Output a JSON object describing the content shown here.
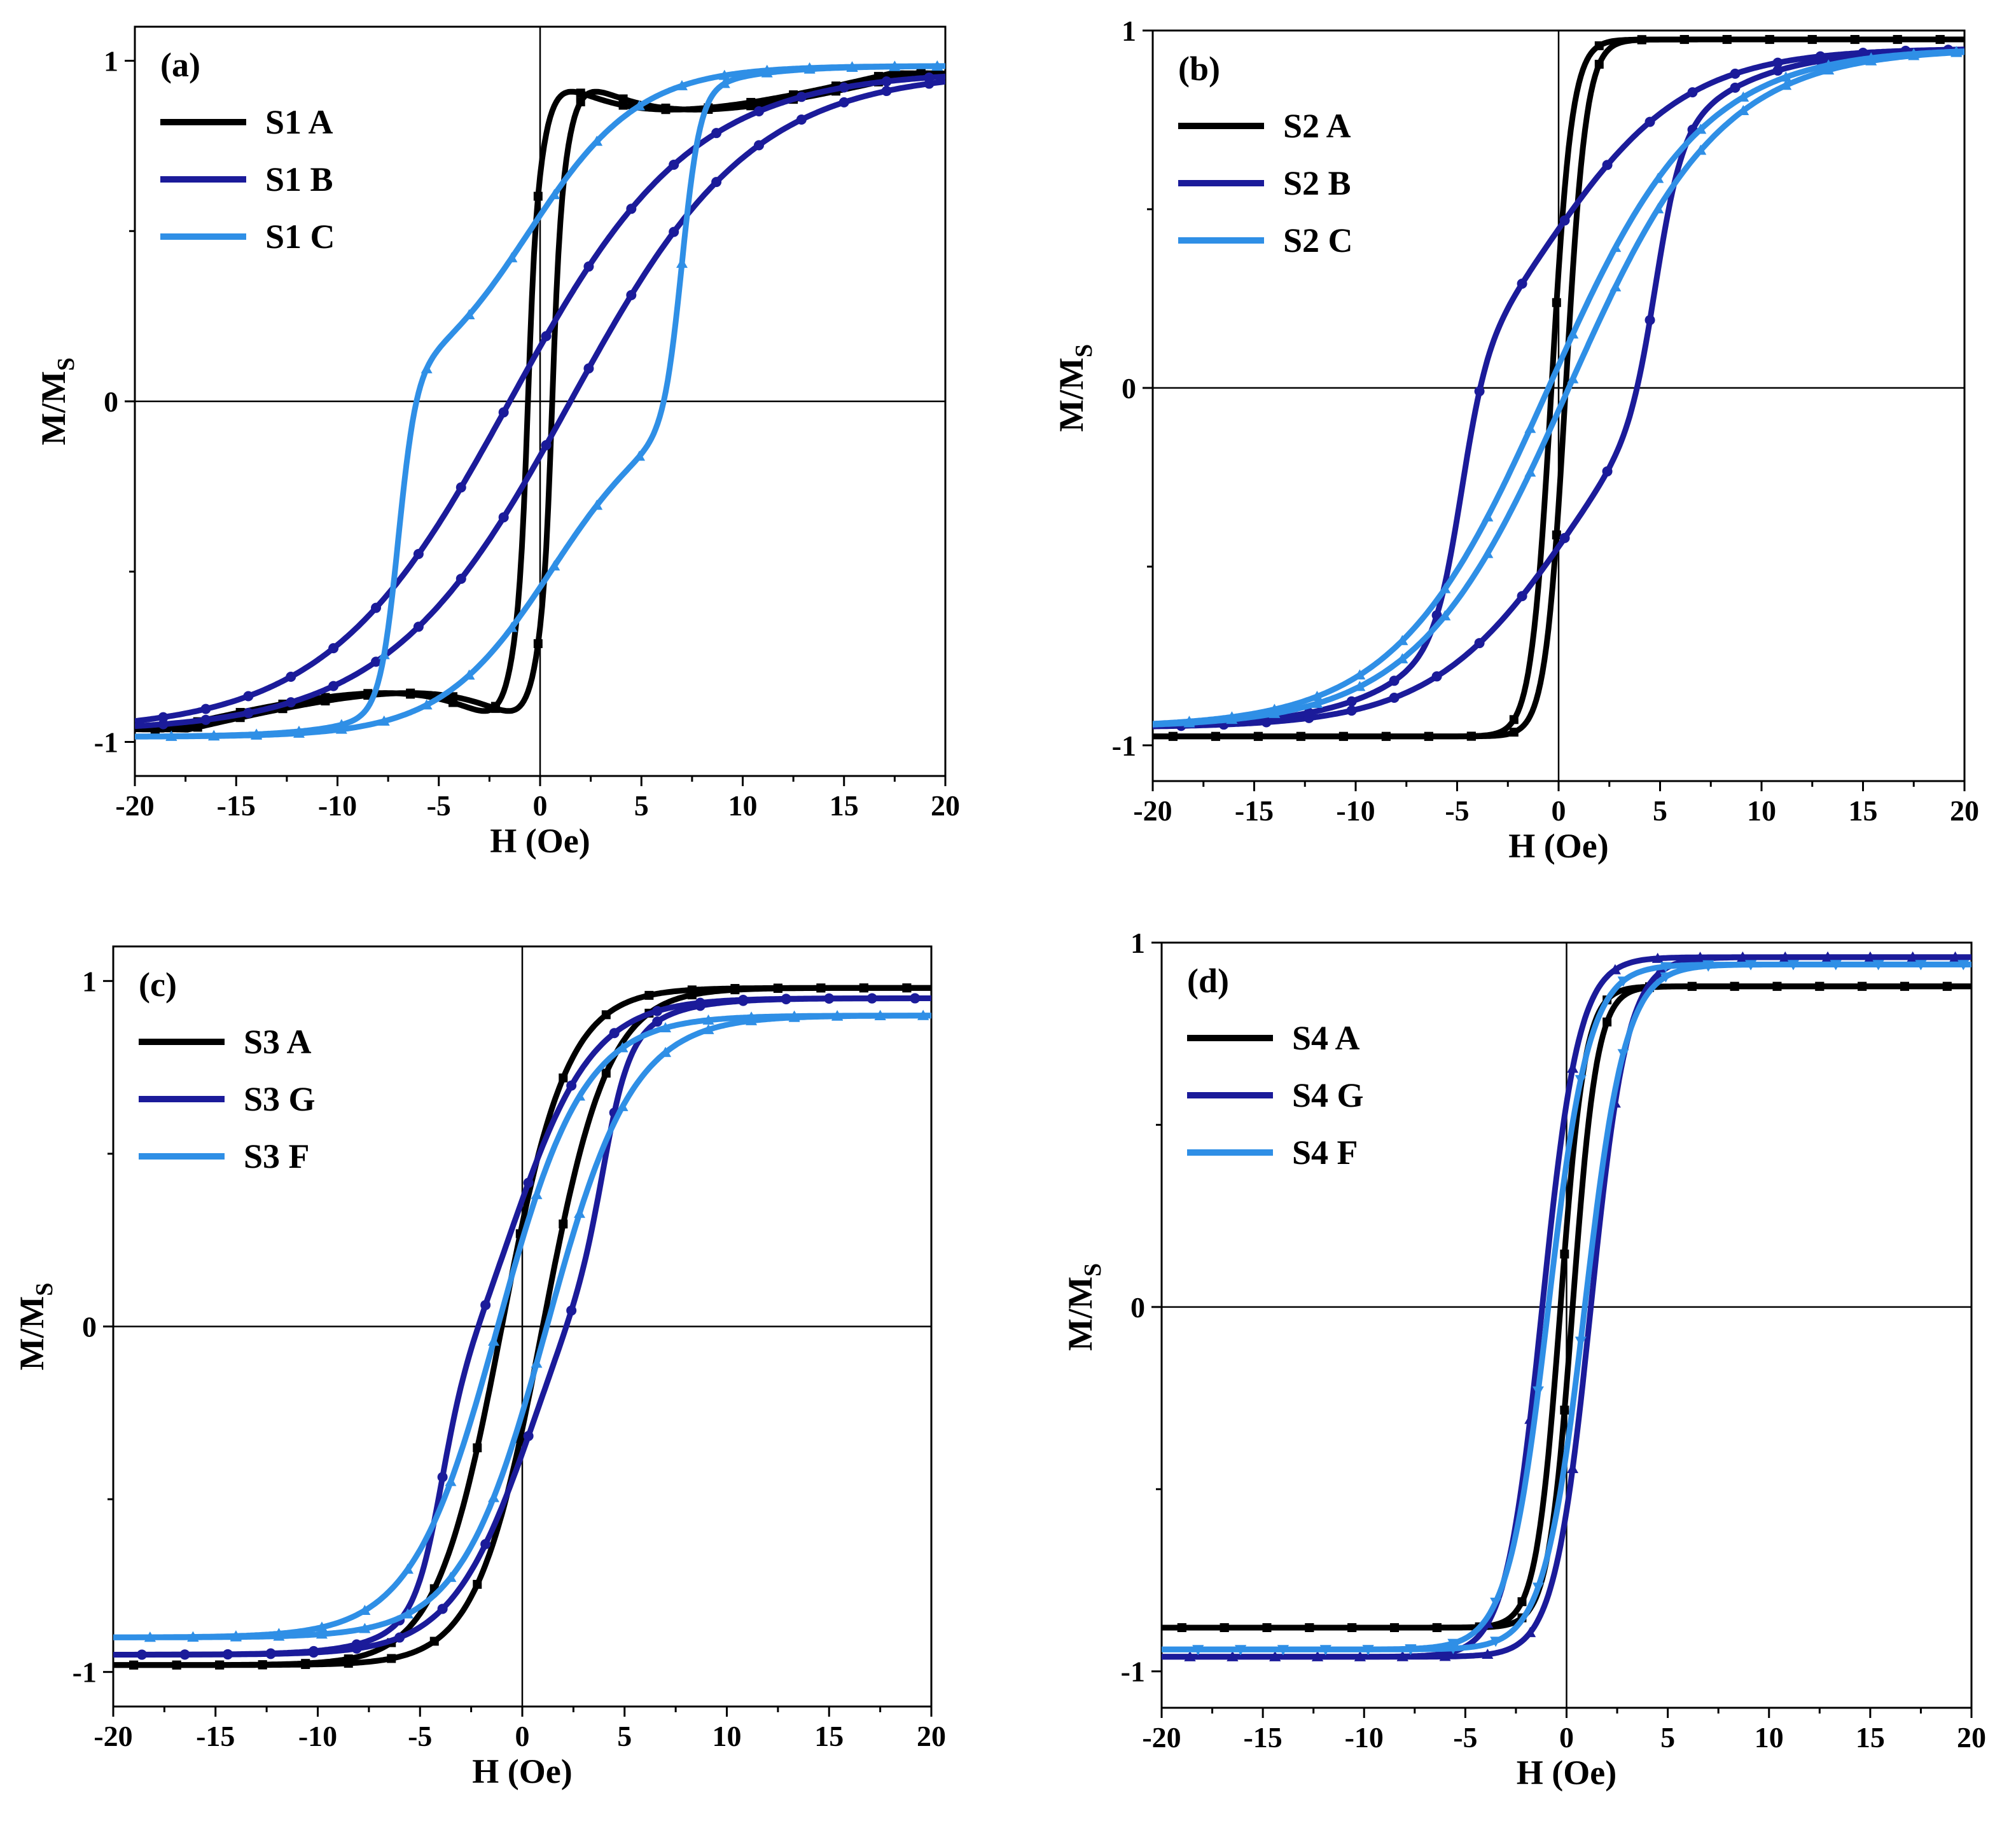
{
  "chart_data": [
    {
      "type": "line",
      "panel_label": "(a)",
      "xlabel": "H (Oe)",
      "ylabel": "M/M",
      "ylabel_sub": "S",
      "xlim": [
        -20,
        20
      ],
      "ylim": [
        -1.1,
        1.1
      ],
      "xticks": [
        -20,
        -15,
        -10,
        -5,
        0,
        5,
        10,
        15,
        20
      ],
      "xtick_labels": [
        "-20",
        "-15",
        "-10",
        "-5",
        "0",
        "5",
        "10",
        "15",
        "20"
      ],
      "yticks": [
        -1,
        0,
        1
      ],
      "ytick_labels": [
        "-1",
        "0",
        "1"
      ],
      "legend_position": "top-left",
      "series": [
        {
          "name": "S1 A",
          "color": "#000000",
          "marker": "square",
          "hc": 0.6,
          "w": 1.0,
          "ms": 0.96,
          "jump": 0.35,
          "slope": 0.0124
        },
        {
          "name": "S1 B",
          "color": "#1b1b9a",
          "marker": "circle",
          "hc": 1.5,
          "w": 9.0,
          "ms": 0.97,
          "jump": 0.0,
          "slope": 0.0
        },
        {
          "name": "S1 C",
          "color": "#2f8fe6",
          "marker": "triangle",
          "hc": 0.6,
          "w": 5.5,
          "ms": 0.985,
          "jump": 0.0,
          "slope": 0.0,
          "extra_hc": 7.0,
          "extra_amp": 0.5,
          "extra_w": 0.9
        }
      ]
    },
    {
      "type": "line",
      "panel_label": "(b)",
      "xlabel": "H (Oe)",
      "ylabel": "M/M",
      "ylabel_sub": "S",
      "xlim": [
        -20,
        20
      ],
      "ylim": [
        -1.1,
        1.0
      ],
      "xticks": [
        -20,
        -15,
        -10,
        -5,
        0,
        5,
        10,
        15,
        20
      ],
      "xtick_labels": [
        "-20",
        "-15",
        "-10",
        "-5",
        "0",
        "5",
        "10",
        "15",
        "20"
      ],
      "yticks": [
        -1,
        0,
        1
      ],
      "ytick_labels": [
        "-1",
        "0",
        "1"
      ],
      "legend_position": "top-left",
      "series": [
        {
          "name": "S2 A",
          "color": "#000000",
          "marker": "square",
          "hc": 0.35,
          "w": 1.0,
          "ms": 0.975,
          "jump": 0.0,
          "slope": 0.0
        },
        {
          "name": "S2 B",
          "color": "#1b1b9a",
          "marker": "circle",
          "hc": 0.8,
          "w": 7.0,
          "ms": 0.95,
          "jump": 0.0,
          "slope": 0.0,
          "extra_hc": 4.8,
          "extra_amp": 0.4,
          "extra_w": 1.3
        },
        {
          "name": "S2 C",
          "color": "#2f8fe6",
          "marker": "triangle",
          "hc": 0.5,
          "w": 7.5,
          "ms": 0.95,
          "jump": 0.0,
          "slope": 0.0
        }
      ]
    },
    {
      "type": "line",
      "panel_label": "(c)",
      "xlabel": "H (Oe)",
      "ylabel": "M/M",
      "ylabel_sub": "S",
      "xlim": [
        -20,
        20
      ],
      "ylim": [
        -1.1,
        1.1
      ],
      "xticks": [
        -20,
        -15,
        -10,
        -5,
        0,
        5,
        10,
        15,
        20
      ],
      "xtick_labels": [
        "-20",
        "-15",
        "-10",
        "-5",
        "0",
        "5",
        "10",
        "15",
        "20"
      ],
      "yticks": [
        -1,
        0,
        1
      ],
      "ytick_labels": [
        "-1",
        "0",
        "1"
      ],
      "legend_position": "top-left",
      "series": [
        {
          "name": "S3 A",
          "color": "#000000",
          "marker": "square",
          "hc": 1.0,
          "w": 3.2,
          "ms": 0.98,
          "jump": 0.0,
          "slope": 0.0
        },
        {
          "name": "S3 G",
          "color": "#1b1b9a",
          "marker": "circle",
          "hc": 0.5,
          "w": 4.0,
          "ms": 0.95,
          "jump": 0.0,
          "slope": 0.0,
          "extra_hc": 4.0,
          "extra_amp": 0.3,
          "extra_w": 1.2
        },
        {
          "name": "S3 F",
          "color": "#2f8fe6",
          "marker": "triangle",
          "hc": 1.2,
          "w": 4.2,
          "ms": 0.9,
          "jump": 0.0,
          "slope": 0.0
        }
      ]
    },
    {
      "type": "line",
      "panel_label": "(d)",
      "xlabel": "H (Oe)",
      "ylabel": "M/M",
      "ylabel_sub": "S",
      "xlim": [
        -20,
        20
      ],
      "ylim": [
        -1.1,
        1.0
      ],
      "xticks": [
        -20,
        -15,
        -10,
        -5,
        0,
        5,
        10,
        15,
        20
      ],
      "xtick_labels": [
        "-20",
        "-15",
        "-10",
        "-5",
        "0",
        "5",
        "10",
        "15",
        "20"
      ],
      "yticks": [
        -1,
        0,
        1
      ],
      "ytick_labels": [
        "-1",
        "0",
        "1"
      ],
      "legend_position": "top-left",
      "series": [
        {
          "name": "S4 A",
          "color": "#000000",
          "marker": "square",
          "hc": 0.3,
          "w": 1.2,
          "ms": 0.88,
          "jump": 0.0,
          "slope": 0.0
        },
        {
          "name": "S4 G",
          "color": "#1b1b9a",
          "marker": "triangle",
          "hc": 1.2,
          "w": 1.8,
          "ms": 0.96,
          "jump": 0.0,
          "slope": 0.0
        },
        {
          "name": "S4 F",
          "color": "#2f8fe6",
          "marker": "triangle-down",
          "hc": 0.9,
          "w": 2.0,
          "ms": 0.94,
          "jump": 0.0,
          "slope": 0.0
        }
      ]
    }
  ]
}
